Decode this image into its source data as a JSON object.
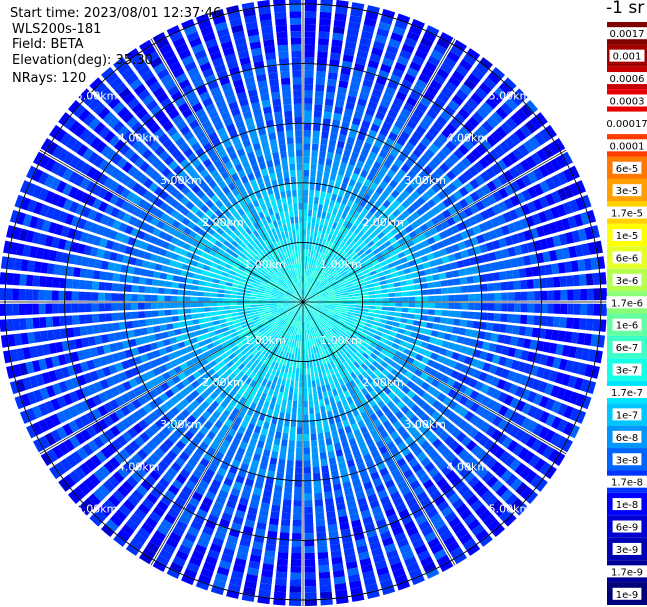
{
  "header": {
    "start_time": "Start time: 2023/08/01 12:37:46",
    "instrument": "WLS200s-181",
    "field": "Field: BETA",
    "elevation": "Elevation(deg): 35.30",
    "nrays": "NRays: 120"
  },
  "chart_data": {
    "type": "heatmap",
    "projection": "polar-ppi",
    "field": "BETA",
    "elevation_deg": 35.3,
    "n_rays": 120,
    "range_rings_km": [
      1,
      2,
      3,
      4,
      5
    ],
    "ring_labels": [
      "1.00km",
      "2.00km",
      "3.00km",
      "4.00km",
      "5.00km"
    ],
    "max_range_km": 5.1,
    "spokes_deg": [
      0,
      30,
      60,
      90,
      120,
      150,
      180,
      210,
      240,
      270,
      300,
      330
    ],
    "radial_profile_log10": [
      {
        "range_km": 0.0,
        "value": -6.6
      },
      {
        "range_km": 0.5,
        "value": -6.6
      },
      {
        "range_km": 1.0,
        "value": -6.75
      },
      {
        "range_km": 1.5,
        "value": -6.95
      },
      {
        "range_km": 2.0,
        "value": -7.15
      },
      {
        "range_km": 2.5,
        "value": -7.35
      },
      {
        "range_km": 3.0,
        "value": -7.5
      },
      {
        "range_km": 4.0,
        "value": -7.75
      },
      {
        "range_km": 5.0,
        "value": -7.9
      }
    ],
    "colorbar": {
      "unit": "-1 sr",
      "ticks": [
        "0.0017",
        "0.001",
        "0.0006",
        "0.0003",
        "0.00017",
        "0.0001",
        "6e-5",
        "3e-5",
        "1.7e-5",
        "1e-5",
        "6e-6",
        "3e-6",
        "1.7e-6",
        "1e-6",
        "6e-7",
        "3e-7",
        "1.7e-7",
        "1e-7",
        "6e-8",
        "3e-8",
        "1.7e-8",
        "1e-8",
        "6e-9",
        "3e-9",
        "1.7e-9",
        "1e-9"
      ],
      "colors": [
        "#800000",
        "#a00000",
        "#c80000",
        "#e60000",
        "#ffffff",
        "#ff3c00",
        "#ff7800",
        "#ffa000",
        "#ffd200",
        "#ffff00",
        "#e6ff2a",
        "#b4ff50",
        "#8cff78",
        "#64ffa0",
        "#3cffc8",
        "#14ffe6",
        "#00e6ff",
        "#00c8ff",
        "#0096ff",
        "#0064ff",
        "#0032ff",
        "#0000ff",
        "#0000d2",
        "#0000b4",
        "#000096",
        "#000078"
      ]
    }
  }
}
